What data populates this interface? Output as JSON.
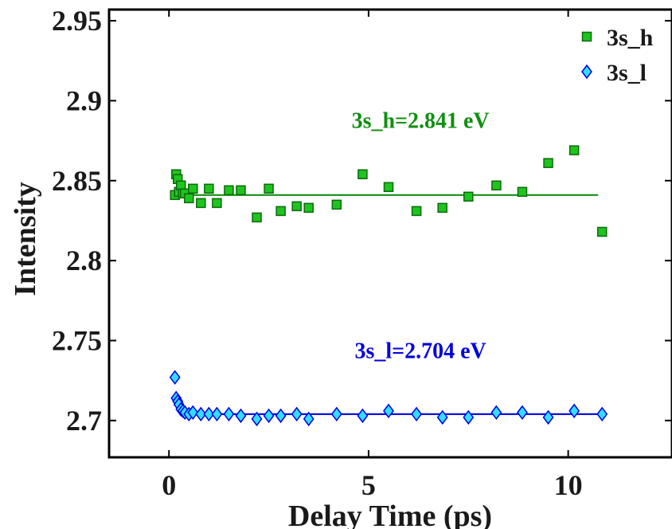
{
  "chart_data": {
    "type": "scatter",
    "title": "",
    "xlabel": "Delay Time (ps)",
    "ylabel": "Intensity",
    "xlim": [
      -1.5,
      12.6
    ],
    "ylim": [
      2.677,
      2.957
    ],
    "xticks": [
      0,
      5,
      10
    ],
    "xtick_labels": [
      "0",
      "5",
      "10"
    ],
    "yticks": [
      2.7,
      2.75,
      2.8,
      2.85,
      2.9,
      2.95
    ],
    "ytick_labels": [
      "2.7",
      "2.75",
      "2.8",
      "2.85",
      "2.9",
      "2.95"
    ],
    "grid": false,
    "legend_position": "top-right",
    "series": [
      {
        "name": "3s_h",
        "marker": "square",
        "color": "#1fc41f",
        "edge_color": "#0a6b0a",
        "x": [
          0.15,
          0.18,
          0.22,
          0.25,
          0.3,
          0.35,
          0.4,
          0.5,
          0.6,
          0.8,
          1.0,
          1.2,
          1.5,
          1.8,
          2.2,
          2.5,
          2.8,
          3.2,
          3.5,
          4.2,
          4.85,
          5.5,
          6.2,
          6.85,
          7.5,
          8.2,
          8.85,
          9.5,
          10.15,
          10.85
        ],
        "y": [
          2.841,
          2.854,
          2.851,
          2.843,
          2.847,
          2.842,
          2.842,
          2.839,
          2.845,
          2.836,
          2.845,
          2.836,
          2.844,
          2.844,
          2.827,
          2.845,
          2.831,
          2.834,
          2.833,
          2.835,
          2.854,
          2.846,
          2.831,
          2.833,
          2.84,
          2.847,
          2.843,
          2.861,
          2.869,
          2.818
        ]
      },
      {
        "name": "3s_l",
        "marker": "diamond",
        "color": "#33ddff",
        "edge_color": "#0000dd",
        "x": [
          0.15,
          0.18,
          0.22,
          0.25,
          0.3,
          0.35,
          0.4,
          0.5,
          0.6,
          0.8,
          1.0,
          1.2,
          1.5,
          1.8,
          2.2,
          2.5,
          2.8,
          3.2,
          3.5,
          4.2,
          4.85,
          5.5,
          6.2,
          6.85,
          7.5,
          8.2,
          8.85,
          9.5,
          10.15,
          10.85
        ],
        "y": [
          2.727,
          2.714,
          2.712,
          2.71,
          2.707,
          2.706,
          2.705,
          2.704,
          2.705,
          2.704,
          2.704,
          2.704,
          2.704,
          2.703,
          2.701,
          2.703,
          2.703,
          2.704,
          2.701,
          2.704,
          2.703,
          2.706,
          2.704,
          2.702,
          2.702,
          2.705,
          2.705,
          2.702,
          2.706,
          2.704
        ]
      }
    ],
    "fits": [
      {
        "series": "3s_h",
        "color": "#109010",
        "y": 2.841,
        "x_range": [
          0.1,
          10.75
        ]
      },
      {
        "series": "3s_l",
        "color": "#0000dd",
        "y": 2.704,
        "x_range": [
          0.35,
          10.75
        ]
      }
    ],
    "annotations": [
      {
        "text": "3s_h=2.841 eV",
        "x": 6.3,
        "y": 2.883,
        "color": "#109010"
      },
      {
        "text": "3s_l=2.704 eV",
        "x": 6.3,
        "y": 2.739,
        "color": "#0000dd"
      }
    ]
  }
}
